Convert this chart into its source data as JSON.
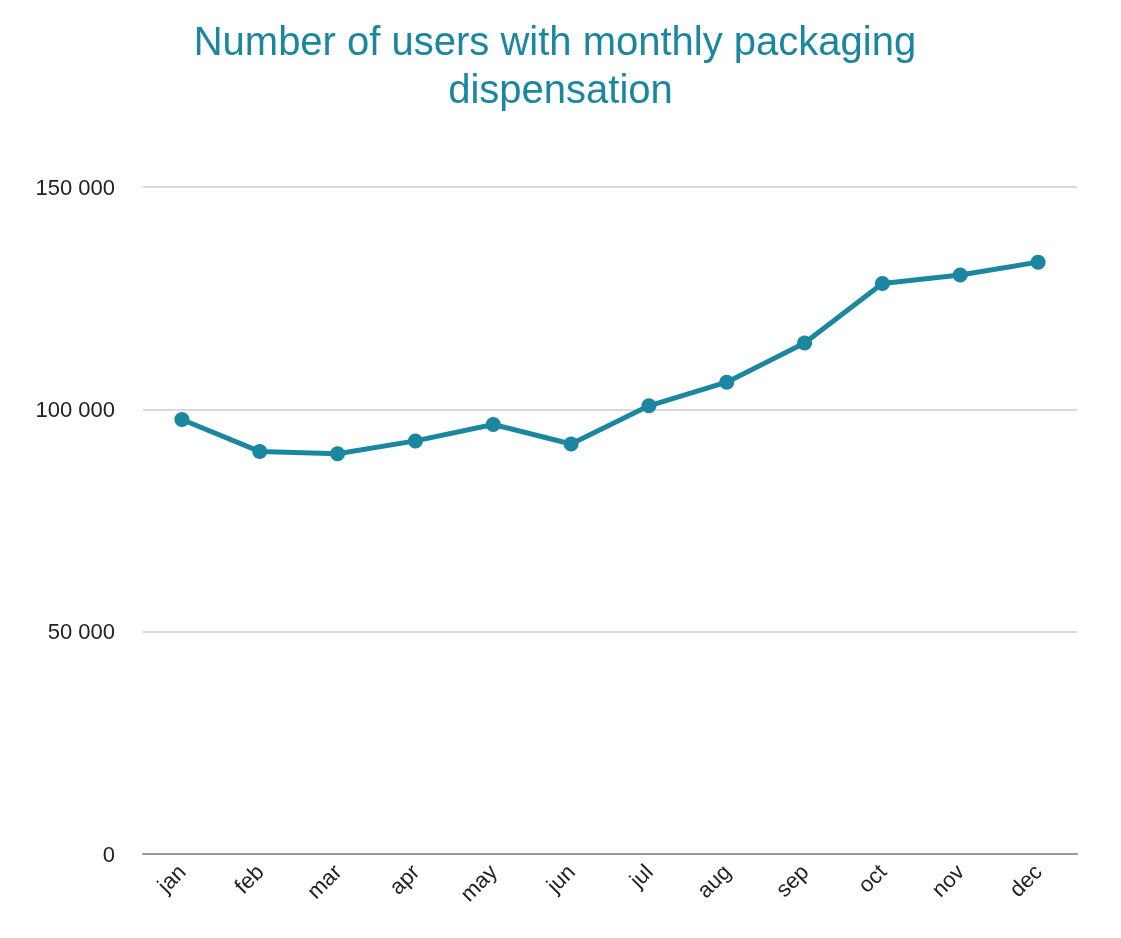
{
  "chart_data": {
    "type": "line",
    "title": "Number of users with monthly packaging dispensation",
    "categories": [
      "jan",
      "feb",
      "mar",
      "apr",
      "may",
      "jun",
      "jul",
      "aug",
      "sep",
      "oct",
      "nov",
      "dec"
    ],
    "series": [
      {
        "color": "#1a86a0",
        "values": [
          97700,
          90500,
          90000,
          92900,
          96600,
          92200,
          100800,
          106100,
          114900,
          128300,
          130200,
          133100
        ]
      }
    ],
    "ylim": [
      0,
      150000
    ],
    "yticks": [
      0,
      {
        "value": 50000,
        "label": "50 000"
      },
      {
        "value": 100000,
        "label": "100 000"
      },
      {
        "value": 150000,
        "label": "150 000"
      }
    ],
    "grid": "y",
    "marker": "circle",
    "line_style": "solid"
  }
}
